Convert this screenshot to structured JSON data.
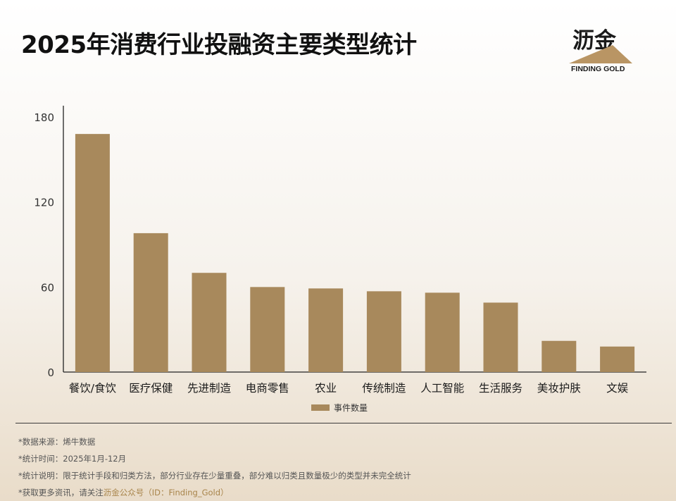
{
  "title": "2025年消费行业投融资主要类型统计",
  "brand": {
    "name_cn": "沥金",
    "name_en": "FINDING GOLD",
    "triangle_color": "#b99564"
  },
  "chart_data": {
    "type": "bar",
    "categories": [
      "餐饮/食饮",
      "医疗保健",
      "先进制造",
      "电商零售",
      "农业",
      "传统制造",
      "人工智能",
      "生活服务",
      "美妆护肤",
      "文娱"
    ],
    "series": [
      {
        "name": "事件数量",
        "values": [
          168,
          98,
          70,
          60,
          59,
          57,
          56,
          49,
          22,
          18
        ],
        "color": "#a8895c"
      }
    ],
    "ylim": [
      0,
      180
    ],
    "yticks": [
      0,
      60,
      120,
      180
    ],
    "grid": false,
    "legend_position": "bottom"
  },
  "footer": {
    "source_label": "*数据来源：",
    "source_value": "烯牛数据",
    "period_label": "*统计时间：",
    "period_value": "2025年1月-12月",
    "note_label": "*统计说明：",
    "note_value": "限于统计手段和归类方法，部分行业存在少量重叠，部分难以归类且数量极少的类型并未完全统计",
    "follow_prefix": "*获取更多资讯，请关注",
    "follow_highlight": "沥金公众号（ID：Finding_Gold）"
  }
}
